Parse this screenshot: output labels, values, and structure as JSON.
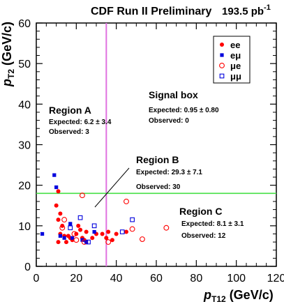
{
  "chart_data": {
    "type": "scatter",
    "title": "CDF Run II Preliminary",
    "luminosity": "193.5 pb",
    "luminosity_sup": "-1",
    "xlabel": {
      "main": "p",
      "sub": "T12",
      "unit": " (GeV/c)"
    },
    "ylabel": {
      "main": "p",
      "sub": "T2",
      "unit": " (GeV/c)"
    },
    "xlim": [
      0,
      120
    ],
    "ylim": [
      0,
      60
    ],
    "xticks": [
      0,
      20,
      40,
      60,
      80,
      100,
      120
    ],
    "yticks": [
      0,
      10,
      20,
      30,
      40,
      50,
      60
    ],
    "grid": false,
    "legend_position": "top-right",
    "cut_lines": {
      "vertical_x": 35,
      "horizontal_y": 18,
      "vertical_color": "#e070e0",
      "horizontal_color": "#44e044"
    },
    "series": [
      {
        "name": "ee",
        "marker": "filled-circle",
        "color": "#ff0000",
        "points": [
          [
            11,
            18.5
          ],
          [
            10,
            15
          ],
          [
            12,
            13
          ],
          [
            11,
            11.5
          ],
          [
            13,
            10
          ],
          [
            12,
            8
          ],
          [
            14,
            7.5
          ],
          [
            15,
            6
          ],
          [
            11,
            6
          ],
          [
            16,
            7.5
          ],
          [
            17,
            7
          ],
          [
            18,
            6.5
          ],
          [
            20,
            8
          ],
          [
            21,
            10
          ],
          [
            22,
            9
          ],
          [
            23,
            7
          ],
          [
            24,
            6.5
          ],
          [
            25,
            8.5
          ],
          [
            28,
            7
          ],
          [
            30,
            8
          ],
          [
            33,
            8
          ],
          [
            35,
            7
          ],
          [
            36,
            8.5
          ],
          [
            38,
            6.5
          ],
          [
            40,
            8
          ],
          [
            45,
            8.5
          ]
        ]
      },
      {
        "name": "eμ",
        "marker": "filled-square",
        "color": "#0000dd",
        "points": [
          [
            3,
            8
          ],
          [
            9,
            22.5
          ],
          [
            10,
            19.5
          ],
          [
            12,
            7.5
          ],
          [
            14,
            7
          ],
          [
            17,
            10.5
          ],
          [
            18,
            7
          ],
          [
            23,
            6.5
          ],
          [
            25,
            6
          ],
          [
            29,
            8.5
          ]
        ]
      },
      {
        "name": "μe",
        "marker": "open-circle",
        "color": "#ff0000",
        "points": [
          [
            23,
            17.5
          ],
          [
            45,
            16
          ],
          [
            14,
            11.5
          ],
          [
            13,
            9.5
          ],
          [
            19,
            8
          ],
          [
            20,
            6.5
          ],
          [
            24,
            6
          ],
          [
            36,
            6
          ],
          [
            48,
            9.2
          ],
          [
            53,
            6.7
          ],
          [
            65,
            9.5
          ]
        ]
      },
      {
        "name": "μμ",
        "marker": "open-square",
        "color": "#0000dd",
        "points": [
          [
            22,
            12
          ],
          [
            29,
            10
          ],
          [
            43,
            8.5
          ],
          [
            48,
            11.5
          ],
          [
            17,
            9.5
          ],
          [
            26,
            6
          ]
        ]
      }
    ],
    "annotations": [
      {
        "key": "region_a",
        "title": "Region A",
        "lines": [
          "Expected: 6.2 ± 3.4",
          "Observed: 3"
        ]
      },
      {
        "key": "signal_box",
        "title": "Signal box",
        "lines": [
          "Expected: 0.95 ± 0.80",
          "Observed: 0"
        ]
      },
      {
        "key": "region_b",
        "title": "Region B",
        "lines": [
          "Expected: 29.3 ± 7.1",
          "Observed: 30"
        ]
      },
      {
        "key": "region_c",
        "title": "Region C",
        "lines": [
          "Expected: 8.1 ± 3.1",
          "Observed: 12"
        ]
      }
    ]
  }
}
